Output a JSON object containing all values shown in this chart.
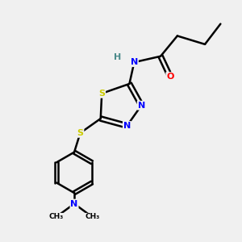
{
  "background_color": "#f0f0f0",
  "bond_color": "#000000",
  "atom_colors": {
    "S": "#cccc00",
    "N": "#0000ff",
    "O": "#ff0000",
    "H": "#4a8a8a",
    "C": "#000000"
  }
}
